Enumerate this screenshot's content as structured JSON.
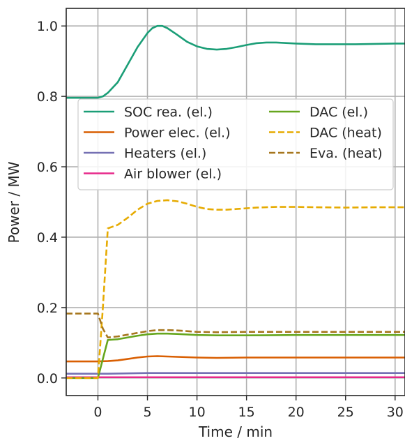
{
  "chart_data": {
    "type": "line",
    "title": "",
    "xlabel": "Time / min",
    "ylabel": "Power / MW",
    "xlim": [
      -3.2,
      31
    ],
    "ylim": [
      -0.05,
      1.05
    ],
    "xticks": [
      0,
      5,
      10,
      15,
      20,
      25,
      30
    ],
    "yticks": [
      0.0,
      0.2,
      0.4,
      0.6,
      0.8,
      1.0
    ],
    "xtick_labels": [
      "0",
      "5",
      "10",
      "15",
      "20",
      "25",
      "30"
    ],
    "ytick_labels": [
      "0.0",
      "0.2",
      "0.4",
      "0.6",
      "0.8",
      "1.0"
    ],
    "grid": true,
    "legend_placement": "upper-middle, two columns",
    "series": [
      {
        "name": "SOC rea. (el.)",
        "color": "#1b9e77",
        "dash": "solid",
        "x": [
          -3.2,
          0,
          0.5,
          1,
          2,
          3,
          4,
          5,
          5.5,
          6,
          6.5,
          7,
          8,
          9,
          10,
          11,
          12,
          13,
          14,
          15,
          16,
          17,
          18,
          20,
          22,
          24,
          26,
          28,
          30,
          31
        ],
        "y": [
          0.796,
          0.796,
          0.8,
          0.81,
          0.84,
          0.89,
          0.94,
          0.98,
          0.994,
          1.0,
          1.0,
          0.994,
          0.975,
          0.955,
          0.942,
          0.935,
          0.933,
          0.935,
          0.94,
          0.946,
          0.951,
          0.953,
          0.953,
          0.95,
          0.948,
          0.948,
          0.948,
          0.949,
          0.95,
          0.95
        ]
      },
      {
        "name": "Power elec. (el.)",
        "color": "#d95f02",
        "dash": "solid",
        "x": [
          -3.2,
          0,
          1,
          2,
          3,
          4,
          5,
          6,
          7,
          8,
          10,
          12,
          15,
          20,
          25,
          31
        ],
        "y": [
          0.047,
          0.047,
          0.048,
          0.05,
          0.054,
          0.058,
          0.061,
          0.062,
          0.061,
          0.06,
          0.058,
          0.057,
          0.058,
          0.058,
          0.058,
          0.058
        ]
      },
      {
        "name": "Heaters (el.)",
        "color": "#7570b3",
        "dash": "solid",
        "x": [
          -3.2,
          0,
          1,
          3,
          5,
          7,
          10,
          15,
          20,
          25,
          31
        ],
        "y": [
          0.012,
          0.012,
          0.012,
          0.013,
          0.014,
          0.014,
          0.014,
          0.014,
          0.014,
          0.014,
          0.014
        ]
      },
      {
        "name": "Air blower (el.)",
        "color": "#e7298a",
        "dash": "solid",
        "x": [
          -3.2,
          31
        ],
        "y": [
          0.002,
          0.002
        ]
      },
      {
        "name": "DAC (el.)",
        "color": "#66a61e",
        "dash": "solid",
        "x": [
          -3.2,
          0,
          1,
          2,
          3,
          4,
          5,
          6,
          7,
          8,
          10,
          12,
          15,
          20,
          25,
          31
        ],
        "y": [
          0.0,
          0.0,
          0.108,
          0.11,
          0.115,
          0.12,
          0.124,
          0.126,
          0.126,
          0.125,
          0.122,
          0.121,
          0.121,
          0.122,
          0.122,
          0.122
        ]
      },
      {
        "name": "DAC (heat)",
        "color": "#e6ab02",
        "dash": "dashed",
        "x": [
          -3.2,
          0,
          0.5,
          1,
          2,
          3,
          4,
          5,
          6,
          7,
          8,
          9,
          10,
          11,
          12,
          13,
          14,
          15,
          16,
          17,
          18,
          20,
          22,
          25,
          28,
          31
        ],
        "y": [
          0.0,
          0.0,
          0.2,
          0.425,
          0.435,
          0.455,
          0.478,
          0.495,
          0.503,
          0.505,
          0.502,
          0.495,
          0.486,
          0.48,
          0.478,
          0.478,
          0.48,
          0.482,
          0.484,
          0.485,
          0.486,
          0.486,
          0.485,
          0.484,
          0.485,
          0.485
        ]
      },
      {
        "name": "Eva. (heat)",
        "color": "#a6761d",
        "dash": "dashed",
        "x": [
          -3.2,
          0,
          0.5,
          1,
          2,
          3,
          4,
          5,
          6,
          7,
          8,
          9,
          10,
          12,
          15,
          20,
          25,
          31
        ],
        "y": [
          0.183,
          0.183,
          0.14,
          0.115,
          0.118,
          0.123,
          0.128,
          0.133,
          0.136,
          0.136,
          0.135,
          0.133,
          0.131,
          0.13,
          0.131,
          0.131,
          0.131,
          0.131
        ]
      }
    ]
  }
}
